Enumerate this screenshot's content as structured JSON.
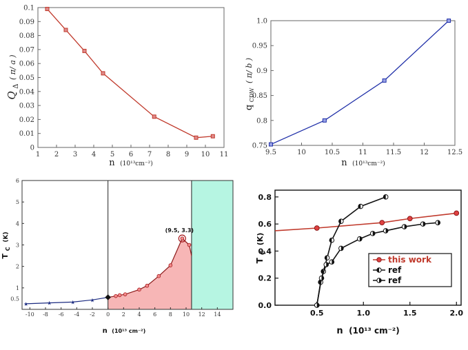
{
  "colors": {
    "red": "#c0392b",
    "blue": "#1f2fa8",
    "navy": "#1a2a80",
    "black": "#111111",
    "fill_red": "#f7b6b6",
    "fill_green": "#b6f5e2"
  },
  "chart_data": [
    {
      "id": "a",
      "type": "line",
      "xlabel_main": "n",
      "xlabel_unit": "(10¹³cm⁻²)",
      "ylabel_main": "Q",
      "ylabel_sub": "Δ",
      "ylabel_unit": "( π/ a )",
      "xlim": [
        1,
        11
      ],
      "ylim": [
        0,
        0.1
      ],
      "xticks": [
        "1",
        "2",
        "3",
        "4",
        "5",
        "6",
        "7",
        "8",
        "9",
        "10",
        "11"
      ],
      "yticks": [
        "0",
        "0.01",
        "0.02",
        "0.03",
        "0.04",
        "0.05",
        "0.06",
        "0.07",
        "0.08",
        "0.09",
        "0.1"
      ],
      "series": [
        {
          "name": "Q_delta",
          "x": [
            1.5,
            2.5,
            3.5,
            4.5,
            7.25,
            9.5,
            10.4
          ],
          "y": [
            0.099,
            0.084,
            0.069,
            0.053,
            0.022,
            0.007,
            0.008
          ]
        }
      ]
    },
    {
      "id": "b",
      "type": "line",
      "xlabel_main": "n",
      "xlabel_unit": "(10¹³cm⁻²)",
      "ylabel_main": "q",
      "ylabel_sub": "CDW",
      "ylabel_unit": "( π/ b )",
      "xlim": [
        9.5,
        12.5
      ],
      "ylim": [
        0.75,
        1.0
      ],
      "xticks": [
        "9.5",
        "10",
        "10.5",
        "11",
        "11.5",
        "12",
        "12.5"
      ],
      "yticks": [
        "0.75",
        "0.8",
        "0.85",
        "0.9",
        "0.95",
        "1.0"
      ],
      "series": [
        {
          "name": "q_CDW",
          "x": [
            9.5,
            10.375,
            11.35,
            12.4
          ],
          "y": [
            0.752,
            0.8,
            0.88,
            1.0
          ]
        }
      ]
    },
    {
      "id": "c",
      "type": "area",
      "xlabel_main": "n",
      "xlabel_unit": "(10¹³ cm⁻²)",
      "ylabel_main": "T",
      "ylabel_sub": "C",
      "ylabel_unit": "(K)",
      "xlim": [
        -11,
        16
      ],
      "ylim": [
        0,
        6
      ],
      "xticks": [
        "-10",
        "-8",
        "-6",
        "-4",
        "-2",
        "0",
        "2",
        "4",
        "6",
        "8",
        "10",
        "12",
        "14"
      ],
      "yticks": [
        "1",
        "2",
        "3",
        "4",
        "5",
        "6"
      ],
      "extra_ytick": "0.5",
      "annotation": "(9.5, 3.3)",
      "annotation_point": [
        9.5,
        3.3
      ],
      "vline_x": 0,
      "green_region": [
        10.7,
        16
      ],
      "series": [
        {
          "name": "electron",
          "x": [
            -10.5,
            -7.5,
            -4.5,
            -2,
            0
          ],
          "y": [
            0.26,
            0.3,
            0.34,
            0.44,
            0.56
          ]
        },
        {
          "name": "hole",
          "x": [
            0,
            1,
            1.5,
            2.2,
            4,
            5,
            6.5,
            8,
            9.5,
            10.4,
            10.7
          ],
          "y": [
            0.56,
            0.62,
            0.66,
            0.7,
            0.92,
            1.1,
            1.55,
            2.05,
            3.3,
            3.0,
            2.5
          ]
        }
      ]
    },
    {
      "id": "d",
      "type": "line",
      "xlabel_main": "n",
      "xlabel_unit": "(10¹³ cm⁻²)",
      "ylabel_main": "T",
      "ylabel_sub": "C",
      "ylabel_unit": "(K)",
      "xlim": [
        0.05,
        2.05
      ],
      "ylim": [
        0,
        0.85
      ],
      "xticks": [
        "0.5",
        "1.0",
        "1.5",
        "2.0"
      ],
      "xtick_values": [
        0.5,
        1.0,
        1.5,
        2.0
      ],
      "yticks": [
        "0.0",
        "0.2",
        "0.4",
        "0.6",
        "0.8"
      ],
      "ytick_values": [
        0.0,
        0.2,
        0.4,
        0.6,
        0.8
      ],
      "legend": [
        "this work",
        "ref",
        "ref"
      ],
      "legend_position": "lower-right",
      "series": [
        {
          "name": "this work",
          "x": [
            0.05,
            0.5,
            1.2,
            1.5,
            2.0
          ],
          "y": [
            0.55,
            0.57,
            0.61,
            0.64,
            0.68
          ]
        },
        {
          "name": "ref",
          "x": [
            0.5,
            0.54,
            0.57,
            0.61,
            0.66,
            0.76,
            0.97,
            1.24
          ],
          "y": [
            0.0,
            0.17,
            0.25,
            0.35,
            0.48,
            0.62,
            0.73,
            0.8
          ]
        },
        {
          "name": "ref",
          "x": [
            0.5,
            0.55,
            0.6,
            0.66,
            0.76,
            0.96,
            1.1,
            1.24,
            1.44,
            1.64,
            1.8
          ],
          "y": [
            0.0,
            0.2,
            0.3,
            0.32,
            0.42,
            0.49,
            0.53,
            0.55,
            0.58,
            0.6,
            0.61
          ]
        }
      ]
    }
  ]
}
